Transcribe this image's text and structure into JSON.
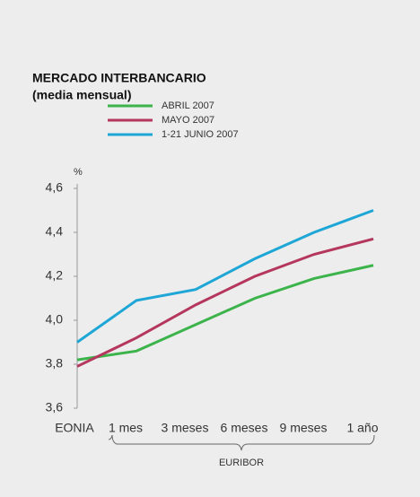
{
  "chart_data": {
    "type": "line",
    "title": "MERCADO INTERBANCARIO",
    "subtitle": "(media mensual)",
    "y_label": "%",
    "group_label": "EURIBOR",
    "categories": [
      "EONIA",
      "1 mes",
      "3 meses",
      "6 meses",
      "9 meses",
      "1 año"
    ],
    "series": [
      {
        "name": "ABRIL 2007",
        "color": "#3cb44b",
        "values": [
          3.82,
          3.86,
          3.98,
          4.1,
          4.19,
          4.25
        ]
      },
      {
        "name": "MAYO 2007",
        "color": "#b5375e",
        "values": [
          3.79,
          3.92,
          4.07,
          4.2,
          4.3,
          4.37
        ]
      },
      {
        "name": "1-21 JUNIO 2007",
        "color": "#1ea7d6",
        "values": [
          3.9,
          4.09,
          4.14,
          4.28,
          4.4,
          4.5
        ]
      }
    ],
    "ylim": [
      3.6,
      4.6
    ],
    "yticks": [
      {
        "value": 3.6,
        "label": "3,6"
      },
      {
        "value": 3.8,
        "label": "3,8"
      },
      {
        "value": 4.0,
        "label": "4,0"
      },
      {
        "value": 4.2,
        "label": "4,2"
      },
      {
        "value": 4.4,
        "label": "4,4"
      },
      {
        "value": 4.6,
        "label": "4,6"
      }
    ]
  }
}
